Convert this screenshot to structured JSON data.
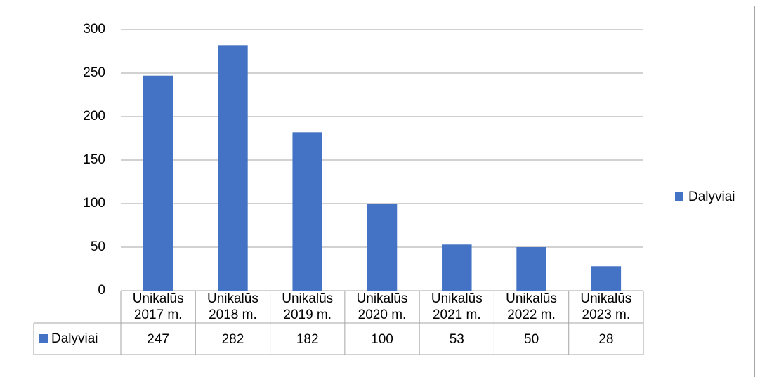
{
  "chart_data": {
    "type": "bar",
    "categories": [
      "Unikalūs 2017 m.",
      "Unikalūs 2018 m.",
      "Unikalūs 2019 m.",
      "Unikalūs 2020 m.",
      "Unikalūs 2021 m.",
      "Unikalūs 2022 m.",
      "Unikalūs 2023 m."
    ],
    "series": [
      {
        "name": "Dalyviai",
        "color": "#4472c4",
        "values": [
          247,
          282,
          182,
          100,
          53,
          50,
          28
        ]
      }
    ],
    "ylim": [
      0,
      300
    ],
    "yticks": [
      0,
      50,
      100,
      150,
      200,
      250,
      300
    ],
    "grid": true,
    "legend": "right",
    "data_table": true
  }
}
